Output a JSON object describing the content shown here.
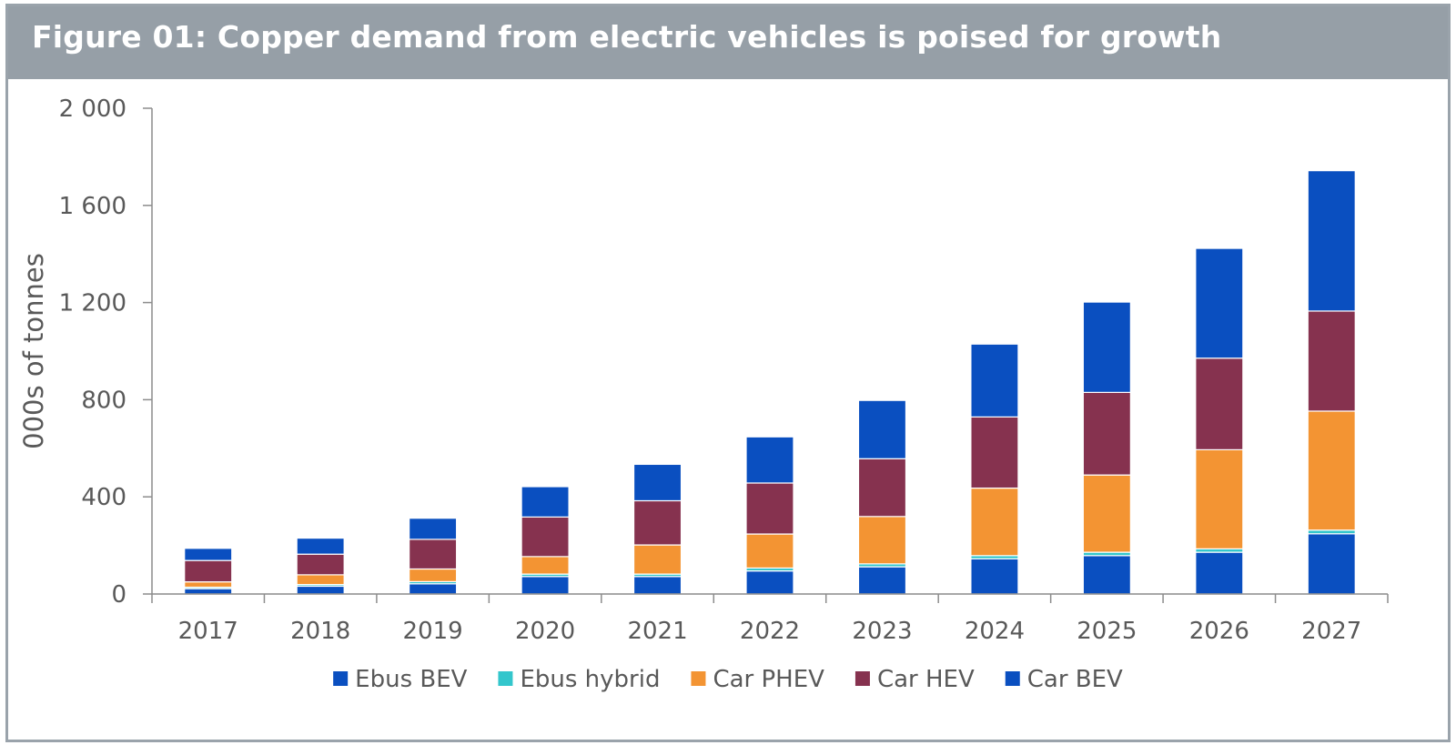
{
  "figure": {
    "title": "Figure 01: Copper demand from electric vehicles is poised for growth"
  },
  "chart_data": {
    "type": "bar",
    "stacked": true,
    "title": "Figure 01: Copper demand from electric vehicles is poised for growth",
    "xlabel": "",
    "ylabel": "000s of tonnes",
    "ylim": [
      0,
      2000
    ],
    "yticks": [
      0,
      400,
      800,
      1200,
      1600,
      2000
    ],
    "ytick_labels": [
      "0",
      "400",
      "800",
      "1 200",
      "1 600",
      "2 000"
    ],
    "categories": [
      "2017",
      "2018",
      "2019",
      "2020",
      "2021",
      "2022",
      "2023",
      "2024",
      "2025",
      "2026",
      "2027"
    ],
    "series": [
      {
        "name": "Ebus BEV",
        "color": "#0a4fc0",
        "values": [
          22,
          32,
          42,
          72,
          72,
          95,
          112,
          145,
          158,
          172,
          248
        ]
      },
      {
        "name": "Ebus hybrid",
        "color": "#33c6cc",
        "values": [
          6,
          7,
          9,
          10,
          10,
          12,
          12,
          13,
          14,
          14,
          15
        ]
      },
      {
        "name": "Car PHEV",
        "color": "#f39433",
        "values": [
          22,
          40,
          52,
          72,
          120,
          140,
          195,
          278,
          318,
          408,
          490
        ]
      },
      {
        "name": "Car HEV",
        "color": "#86324f",
        "values": [
          88,
          85,
          122,
          163,
          182,
          210,
          238,
          293,
          340,
          377,
          412
        ]
      },
      {
        "name": "Car BEV",
        "color": "#0a4fc0",
        "values": [
          50,
          66,
          87,
          125,
          150,
          190,
          240,
          300,
          372,
          452,
          578
        ]
      }
    ],
    "legend_position": "bottom",
    "grid": false
  }
}
